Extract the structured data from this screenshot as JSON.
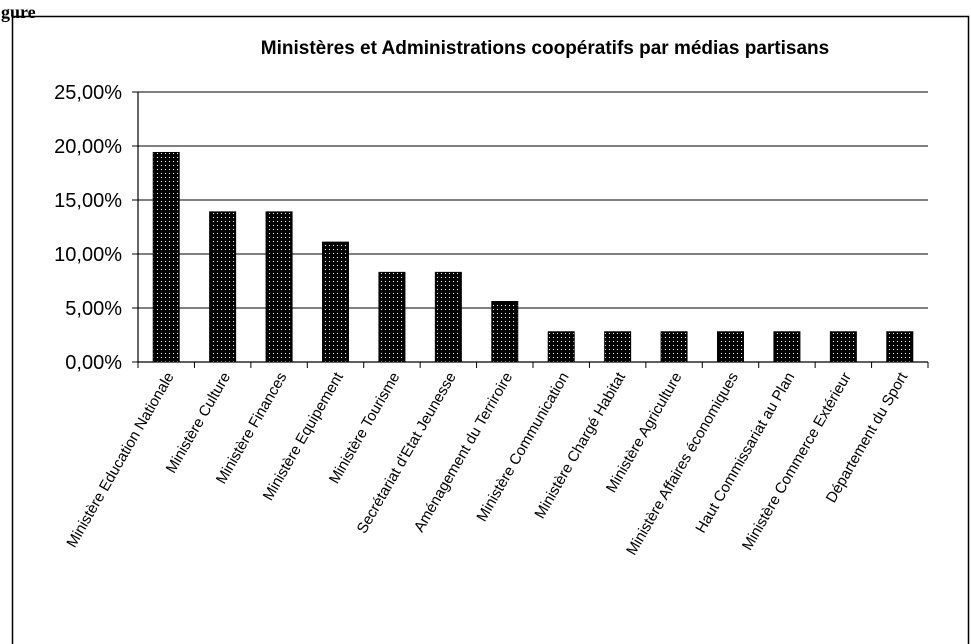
{
  "figure_label": "gure",
  "chart_data": {
    "type": "bar",
    "title": "Ministères et Administrations coopératifs par médias partisans",
    "xlabel": "",
    "ylabel": "",
    "ylim": [
      0,
      25
    ],
    "y_ticks": [
      "0,00%",
      "5,00%",
      "10,00%",
      "15,00%",
      "20,00%",
      "25,00%"
    ],
    "y_tick_values": [
      0,
      5,
      10,
      15,
      20,
      25
    ],
    "grid": true,
    "legend": "none",
    "bar_color": "#000000",
    "categories": [
      "Ministère Education Nationale",
      "Ministère Culture",
      "Ministère Finances",
      "Ministère Equipement",
      "Ministère Tourisme",
      "Secrétariat d'Etat Jeunesse",
      "Aménagement du Terriroire",
      "Ministère Communication",
      "Ministère Chargé Habitat",
      "Ministère Agriculture",
      "Ministère Affaires économiques",
      "Haut Commissariat au Plan",
      "Ministère Commerce Extérieur",
      "Département du Sport"
    ],
    "values": [
      19.4,
      13.9,
      13.9,
      11.1,
      8.3,
      8.3,
      5.6,
      2.8,
      2.8,
      2.8,
      2.8,
      2.8,
      2.8,
      2.8
    ]
  }
}
